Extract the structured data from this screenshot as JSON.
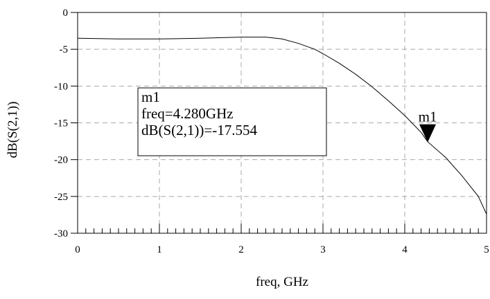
{
  "chart_data": {
    "type": "line",
    "xlabel": "freq, GHz",
    "ylabel": "dB(S(2,1))",
    "xlim": [
      0,
      5
    ],
    "ylim": [
      -30,
      0
    ],
    "x_ticks": [
      "0",
      "1",
      "2",
      "3",
      "4",
      "5"
    ],
    "x_tick_values": [
      0,
      1,
      2,
      3,
      4,
      5
    ],
    "y_ticks": [
      "0",
      "-5",
      "-10",
      "-15",
      "-20",
      "-25",
      "-30"
    ],
    "y_tick_values": [
      0,
      -5,
      -10,
      -15,
      -20,
      -25,
      -30
    ],
    "grid": true,
    "series": [
      {
        "x": [
          0.0,
          0.5,
          1.0,
          1.5,
          2.0,
          2.3,
          2.5,
          2.7,
          2.9,
          3.0,
          3.2,
          3.4,
          3.6,
          3.8,
          4.0,
          4.2,
          4.28,
          4.5,
          4.7,
          4.9,
          5.0
        ],
        "y": [
          -3.5,
          -3.6,
          -3.6,
          -3.5,
          -3.35,
          -3.35,
          -3.6,
          -4.2,
          -5.0,
          -5.6,
          -6.9,
          -8.4,
          -10.1,
          -12.0,
          -14.0,
          -16.3,
          -17.554,
          -19.7,
          -22.2,
          -25.0,
          -27.4
        ]
      }
    ],
    "markers": [
      {
        "name": "m1",
        "x": 4.28,
        "y": -17.554,
        "lines": [
          "m1",
          "freq=4.280GHz",
          "dB(S(2,1))=-17.554"
        ]
      }
    ]
  }
}
